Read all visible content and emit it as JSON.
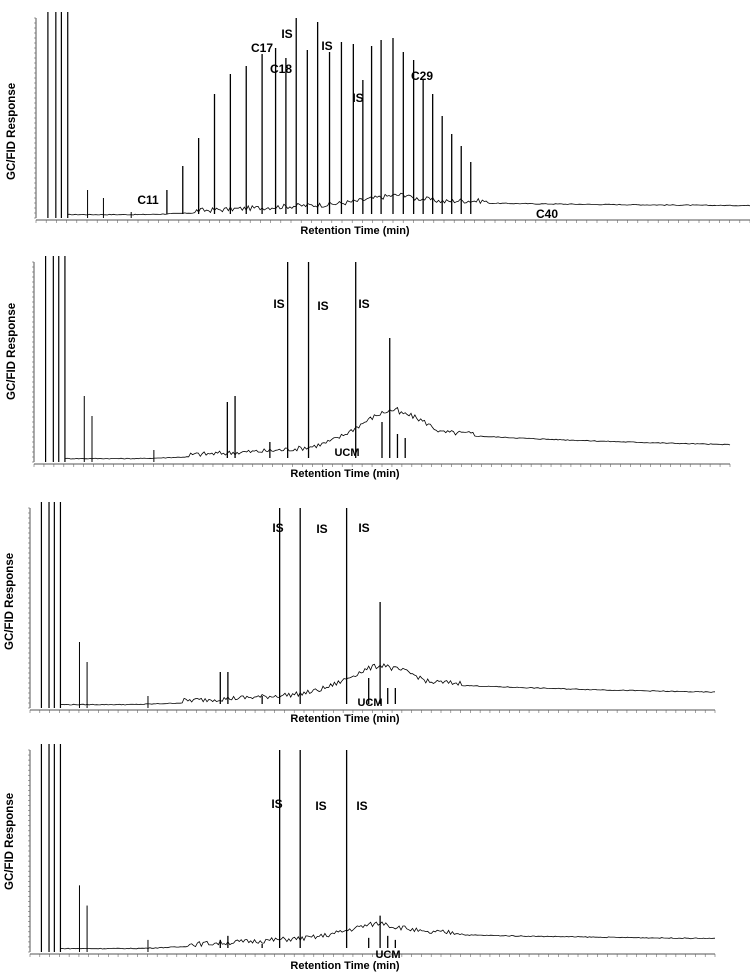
{
  "chart_data": [
    {
      "type": "line",
      "ylabel": "GC/FID Response",
      "xlabel": "Retention Time (min)",
      "annotations": [
        {
          "text": "C11",
          "x": 20.0
        },
        {
          "text": "C17",
          "x": 35.5
        },
        {
          "text": "IS",
          "x": 37.8
        },
        {
          "text": "C18",
          "x": 37.0
        },
        {
          "text": "IS",
          "x": 41.0
        },
        {
          "text": "IS",
          "x": 47.0
        },
        {
          "text": "C29",
          "x": 53.0
        },
        {
          "text": "C40",
          "x": 70.0
        }
      ],
      "peaks_x": [
        21.5,
        23.5,
        25.5,
        27.5,
        29.5,
        31.5,
        33.5,
        35.2,
        36.5,
        37.8,
        39.2,
        40.5,
        42.0,
        43.5,
        45.0,
        46.2,
        47.3,
        48.5,
        50.0,
        51.3,
        52.6,
        53.8,
        55.0,
        56.2,
        57.4,
        58.6,
        59.8
      ],
      "peaks_y": [
        0.14,
        0.26,
        0.4,
        0.62,
        0.72,
        0.76,
        0.82,
        0.85,
        0.8,
        1.0,
        0.84,
        0.98,
        0.83,
        0.88,
        0.87,
        0.69,
        0.86,
        0.89,
        0.9,
        0.83,
        0.79,
        0.69,
        0.62,
        0.51,
        0.42,
        0.36,
        0.28
      ],
      "ucm_hump": {
        "center": 52,
        "height": 0.06
      }
    },
    {
      "type": "line",
      "ylabel": "GC/FID Response",
      "xlabel": "Retention Time (min)",
      "annotations": [
        {
          "text": "IS",
          "x": 37.8
        },
        {
          "text": "IS",
          "x": 41.0
        },
        {
          "text": "IS",
          "x": 47.0
        },
        {
          "text": "UCM",
          "x": 47.0
        }
      ],
      "peaks_x": [
        30.0,
        31.0,
        35.5,
        37.8,
        40.5,
        46.6,
        50.0,
        51.0,
        52.0,
        53.0
      ],
      "peaks_y": [
        0.3,
        0.33,
        0.1,
        1.0,
        1.0,
        1.0,
        0.2,
        0.62,
        0.14,
        0.12
      ],
      "ucm_hump": {
        "center": 52,
        "height": 0.22
      }
    },
    {
      "type": "line",
      "ylabel": "GC/FID Response",
      "xlabel": "Retention Time (min)",
      "annotations": [
        {
          "text": "IS",
          "x": 37.8
        },
        {
          "text": "IS",
          "x": 41.0
        },
        {
          "text": "IS",
          "x": 47.0
        },
        {
          "text": "UCM",
          "x": 47.0
        }
      ],
      "peaks_x": [
        30.0,
        31.0,
        35.5,
        37.8,
        40.5,
        46.6,
        49.5,
        51.0,
        52.0,
        53.0
      ],
      "peaks_y": [
        0.18,
        0.18,
        0.06,
        1.0,
        1.0,
        1.0,
        0.15,
        0.53,
        0.1,
        0.1
      ],
      "ucm_hump": {
        "center": 52,
        "height": 0.17
      }
    },
    {
      "type": "line",
      "ylabel": "GC/FID Response",
      "xlabel": "Retention Time (min)",
      "annotations": [
        {
          "text": "IS",
          "x": 37.8
        },
        {
          "text": "IS",
          "x": 41.0
        },
        {
          "text": "IS",
          "x": 47.0
        },
        {
          "text": "UCM",
          "x": 49.0
        }
      ],
      "peaks_x": [
        30.0,
        31.0,
        35.5,
        37.8,
        40.5,
        46.6,
        49.5,
        51.0,
        52.0,
        53.0
      ],
      "peaks_y": [
        0.06,
        0.08,
        0.04,
        1.0,
        1.0,
        1.0,
        0.07,
        0.18,
        0.08,
        0.06
      ],
      "ucm_hump": {
        "center": 52,
        "height": 0.09
      }
    }
  ]
}
